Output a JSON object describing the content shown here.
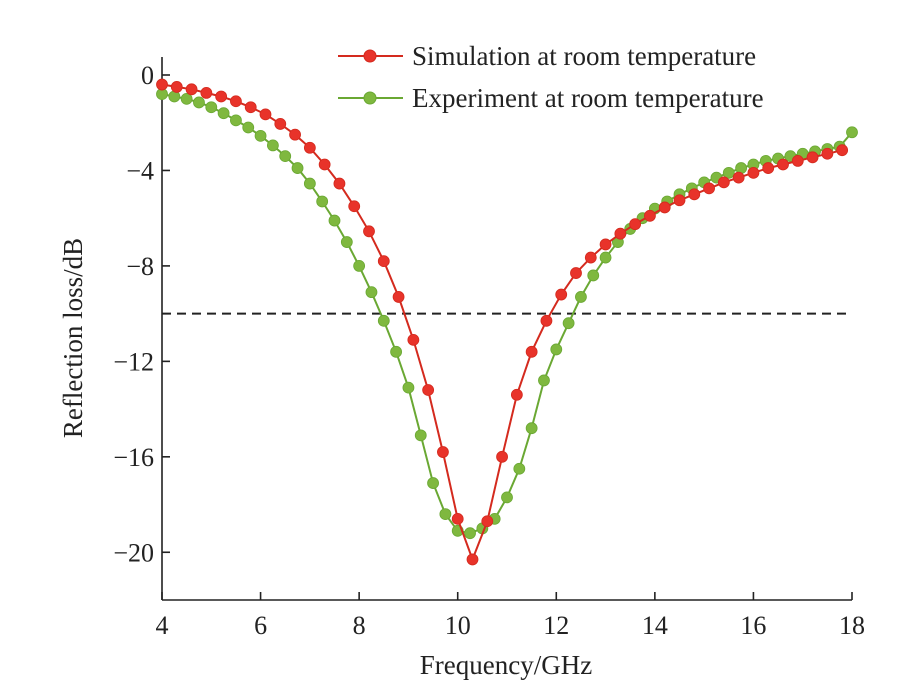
{
  "chart_data": {
    "type": "line",
    "title": "",
    "xlabel": "Frequency/GHz",
    "ylabel": "Reflection loss/dB",
    "xlim": [
      4,
      18
    ],
    "ylim": [
      -22,
      0
    ],
    "xticks": [
      {
        "value": 4,
        "label": "4"
      },
      {
        "value": 6,
        "label": "6"
      },
      {
        "value": 8,
        "label": "8"
      },
      {
        "value": 10,
        "label": "10"
      },
      {
        "value": 12,
        "label": "12"
      },
      {
        "value": 14,
        "label": "14"
      },
      {
        "value": 16,
        "label": "16"
      },
      {
        "value": 18,
        "label": "18"
      }
    ],
    "yticks": [
      {
        "value": 0,
        "label": "0"
      },
      {
        "value": -4,
        "label": "−4"
      },
      {
        "value": -8,
        "label": "−8"
      },
      {
        "value": -12,
        "label": "−12"
      },
      {
        "value": -16,
        "label": "−16"
      },
      {
        "value": -20,
        "label": "−20"
      }
    ],
    "reference_line": {
      "y": -10,
      "style": "dashed",
      "color": "#222222"
    },
    "legend": {
      "position": "top-right"
    },
    "series": [
      {
        "name": "Simulation at room temperature",
        "color": "#d42a1e",
        "marker_color": "#e8332a",
        "x": [
          4.0,
          4.3,
          4.6,
          4.9,
          5.2,
          5.5,
          5.8,
          6.1,
          6.4,
          6.7,
          7.0,
          7.3,
          7.6,
          7.9,
          8.2,
          8.5,
          8.8,
          9.1,
          9.4,
          9.7,
          10.0,
          10.3,
          10.6,
          10.9,
          11.2,
          11.5,
          11.8,
          12.1,
          12.4,
          12.7,
          13.0,
          13.3,
          13.6,
          13.9,
          14.2,
          14.5,
          14.8,
          15.1,
          15.4,
          15.7,
          16.0,
          16.3,
          16.6,
          16.9,
          17.2,
          17.5,
          17.8
        ],
        "y": [
          -0.4,
          -0.5,
          -0.6,
          -0.75,
          -0.9,
          -1.1,
          -1.35,
          -1.65,
          -2.05,
          -2.5,
          -3.05,
          -3.75,
          -4.55,
          -5.5,
          -6.55,
          -7.8,
          -9.3,
          -11.1,
          -13.2,
          -15.8,
          -18.6,
          -20.3,
          -18.7,
          -16.0,
          -13.4,
          -11.6,
          -10.3,
          -9.2,
          -8.3,
          -7.65,
          -7.1,
          -6.65,
          -6.25,
          -5.9,
          -5.55,
          -5.25,
          -5.0,
          -4.75,
          -4.5,
          -4.3,
          -4.1,
          -3.9,
          -3.75,
          -3.6,
          -3.45,
          -3.3,
          -3.15
        ]
      },
      {
        "name": "Experiment at room temperature",
        "color": "#6aa833",
        "marker_color": "#7fb83f",
        "x": [
          4.0,
          4.25,
          4.5,
          4.75,
          5.0,
          5.25,
          5.5,
          5.75,
          6.0,
          6.25,
          6.5,
          6.75,
          7.0,
          7.25,
          7.5,
          7.75,
          8.0,
          8.25,
          8.5,
          8.75,
          9.0,
          9.25,
          9.5,
          9.75,
          10.0,
          10.25,
          10.5,
          10.75,
          11.0,
          11.25,
          11.5,
          11.75,
          12.0,
          12.25,
          12.5,
          12.75,
          13.0,
          13.25,
          13.5,
          13.75,
          14.0,
          14.25,
          14.5,
          14.75,
          15.0,
          15.25,
          15.5,
          15.75,
          16.0,
          16.25,
          16.5,
          16.75,
          17.0,
          17.25,
          17.5,
          17.75,
          18.0
        ],
        "y": [
          -0.8,
          -0.9,
          -1.0,
          -1.15,
          -1.35,
          -1.6,
          -1.9,
          -2.2,
          -2.55,
          -2.95,
          -3.4,
          -3.9,
          -4.55,
          -5.3,
          -6.1,
          -7.0,
          -8.0,
          -9.1,
          -10.3,
          -11.6,
          -13.1,
          -15.1,
          -17.1,
          -18.4,
          -19.1,
          -19.2,
          -19.0,
          -18.6,
          -17.7,
          -16.5,
          -14.8,
          -12.8,
          -11.5,
          -10.4,
          -9.3,
          -8.4,
          -7.65,
          -7.0,
          -6.45,
          -6.0,
          -5.6,
          -5.3,
          -5.0,
          -4.75,
          -4.5,
          -4.3,
          -4.1,
          -3.9,
          -3.75,
          -3.6,
          -3.5,
          -3.4,
          -3.3,
          -3.2,
          -3.1,
          -3.0,
          -2.4
        ]
      }
    ]
  }
}
